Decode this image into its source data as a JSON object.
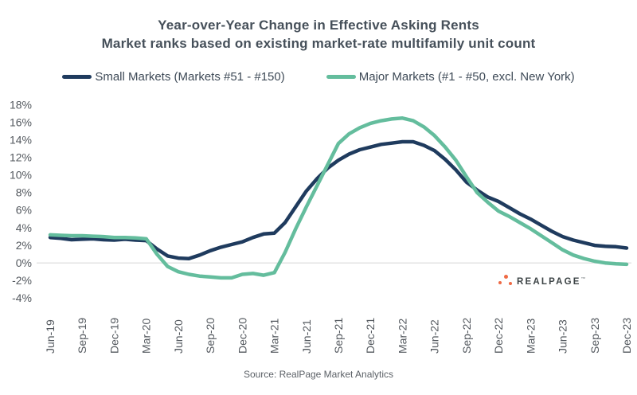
{
  "title": "Year-over-Year Change in Effective Asking Rents",
  "subtitle": "Market ranks based on existing market-rate multifamily unit count",
  "legend": [
    {
      "label": "Small Markets (Markets #51 - #150)",
      "color": "#1f3b5e"
    },
    {
      "label": "Major Markets (#1 - #50, excl. New York)",
      "color": "#64bd9d"
    }
  ],
  "logo": {
    "text": "REALPAGE",
    "tm": "™",
    "dot_color": "#ef6a45",
    "text_color": "#3e4547"
  },
  "source": "Source: RealPage Market Analytics",
  "chart_data": {
    "type": "line",
    "x": [
      "Jun-19",
      "Jul-19",
      "Aug-19",
      "Sep-19",
      "Oct-19",
      "Nov-19",
      "Dec-19",
      "Jan-20",
      "Feb-20",
      "Mar-20",
      "Apr-20",
      "May-20",
      "Jun-20",
      "Jul-20",
      "Aug-20",
      "Sep-20",
      "Oct-20",
      "Nov-20",
      "Dec-20",
      "Jan-21",
      "Feb-21",
      "Mar-21",
      "Apr-21",
      "May-21",
      "Jun-21",
      "Jul-21",
      "Aug-21",
      "Sep-21",
      "Oct-21",
      "Nov-21",
      "Dec-21",
      "Jan-22",
      "Feb-22",
      "Mar-22",
      "Apr-22",
      "May-22",
      "Jun-22",
      "Jul-22",
      "Aug-22",
      "Sep-22",
      "Oct-22",
      "Nov-22",
      "Dec-22",
      "Jan-23",
      "Feb-23",
      "Mar-23",
      "Apr-23",
      "May-23",
      "Jun-23",
      "Jul-23",
      "Aug-23",
      "Sep-23",
      "Oct-23",
      "Nov-23",
      "Dec-23"
    ],
    "x_tick_labels": [
      "Jun-19",
      "Sep-19",
      "Dec-19",
      "Mar-20",
      "Jun-20",
      "Sep-20",
      "Dec-20",
      "Mar-21",
      "Jun-21",
      "Sep-21",
      "Dec-21",
      "Mar-22",
      "Jun-22",
      "Sep-22",
      "Dec-22",
      "Mar-23",
      "Jun-23",
      "Sep-23",
      "Dec-23"
    ],
    "y_ticks": [
      18,
      16,
      14,
      12,
      10,
      8,
      6,
      4,
      2,
      0,
      -2,
      -4
    ],
    "y_tick_labels": [
      "18%",
      "16%",
      "14%",
      "12%",
      "10%",
      "8%",
      "6%",
      "4%",
      "2%",
      "0%",
      "-2%",
      "-4%"
    ],
    "ylim": [
      -4,
      18
    ],
    "unit": "percent",
    "grid": "horizontal line at 0% only",
    "legend_position": "top center",
    "series": [
      {
        "name": "Small Markets (Markets #51 - #150)",
        "color": "#1f3b5e",
        "values": [
          2.9,
          2.8,
          2.65,
          2.7,
          2.75,
          2.65,
          2.6,
          2.7,
          2.6,
          2.55,
          1.6,
          0.8,
          0.55,
          0.5,
          0.9,
          1.4,
          1.8,
          2.1,
          2.4,
          2.9,
          3.3,
          3.4,
          4.6,
          6.4,
          8.2,
          9.6,
          10.8,
          11.7,
          12.4,
          12.9,
          13.2,
          13.5,
          13.65,
          13.8,
          13.8,
          13.4,
          12.8,
          11.8,
          10.6,
          9.2,
          8.3,
          7.5,
          7.0,
          6.3,
          5.6,
          5.0,
          4.3,
          3.6,
          3.0,
          2.6,
          2.3,
          2.0,
          1.9,
          1.85,
          1.7
        ]
      },
      {
        "name": "Major Markets (#1 - #50, excl. New York)",
        "color": "#64bd9d",
        "values": [
          3.2,
          3.15,
          3.1,
          3.1,
          3.05,
          3.0,
          2.9,
          2.9,
          2.85,
          2.75,
          1.0,
          -0.4,
          -1.0,
          -1.3,
          -1.5,
          -1.6,
          -1.7,
          -1.7,
          -1.3,
          -1.2,
          -1.4,
          -1.1,
          1.2,
          3.9,
          6.4,
          8.8,
          11.2,
          13.6,
          14.7,
          15.4,
          15.9,
          16.2,
          16.4,
          16.5,
          16.2,
          15.5,
          14.5,
          13.2,
          11.7,
          9.8,
          8.0,
          6.9,
          5.9,
          5.3,
          4.6,
          3.9,
          3.1,
          2.3,
          1.5,
          0.9,
          0.5,
          0.2,
          0.0,
          -0.1,
          -0.15
        ]
      }
    ]
  }
}
